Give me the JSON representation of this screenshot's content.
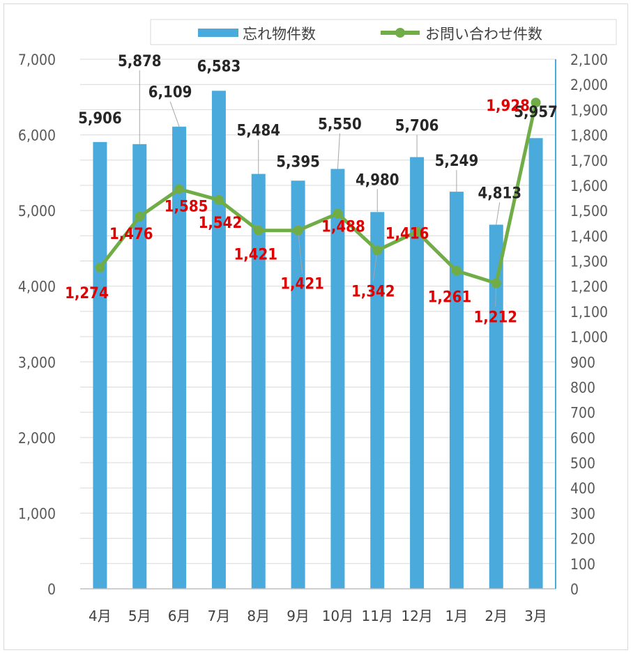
{
  "chart_data": {
    "type": "bar+line",
    "categories": [
      "4月",
      "5月",
      "6月",
      "7月",
      "8月",
      "9月",
      "10月",
      "11月",
      "12月",
      "1月",
      "2月",
      "3月"
    ],
    "series": [
      {
        "name": "忘れ物件数",
        "type": "bar",
        "axis": "left",
        "color": "#4aaadb",
        "values": [
          5906,
          5878,
          6109,
          6583,
          5484,
          5395,
          5550,
          4980,
          5706,
          5249,
          4813,
          5957
        ],
        "labels": [
          "5,906",
          "5,878",
          "6,109",
          "6,583",
          "5,484",
          "5,395",
          "5,550",
          "4,980",
          "5,706",
          "5,249",
          "4,813",
          "5,957"
        ]
      },
      {
        "name": "お問い合わせ件数",
        "type": "line",
        "axis": "right",
        "color": "#70ad47",
        "values": [
          1274,
          1476,
          1585,
          1542,
          1421,
          1421,
          1488,
          1342,
          1416,
          1261,
          1212,
          1928
        ],
        "labels": [
          "1,274",
          "1,476",
          "1,585",
          "1,542",
          "1,421",
          "1,421",
          "1,488",
          "1,342",
          "1,416",
          "1,261",
          "1,212",
          "1,928"
        ]
      }
    ],
    "y_left": {
      "range": [
        0,
        7000
      ],
      "ticks": [
        "0",
        "1,000",
        "2,000",
        "3,000",
        "4,000",
        "5,000",
        "6,000",
        "7,000"
      ]
    },
    "y_right": {
      "range": [
        0,
        2100
      ],
      "ticks": [
        "0",
        "100",
        "200",
        "300",
        "400",
        "500",
        "600",
        "700",
        "800",
        "900",
        "1,000",
        "1,100",
        "1,200",
        "1,300",
        "1,400",
        "1,500",
        "1,600",
        "1,700",
        "1,800",
        "1,900",
        "2,000",
        "2,100"
      ]
    },
    "grid": true,
    "legend": "top"
  }
}
